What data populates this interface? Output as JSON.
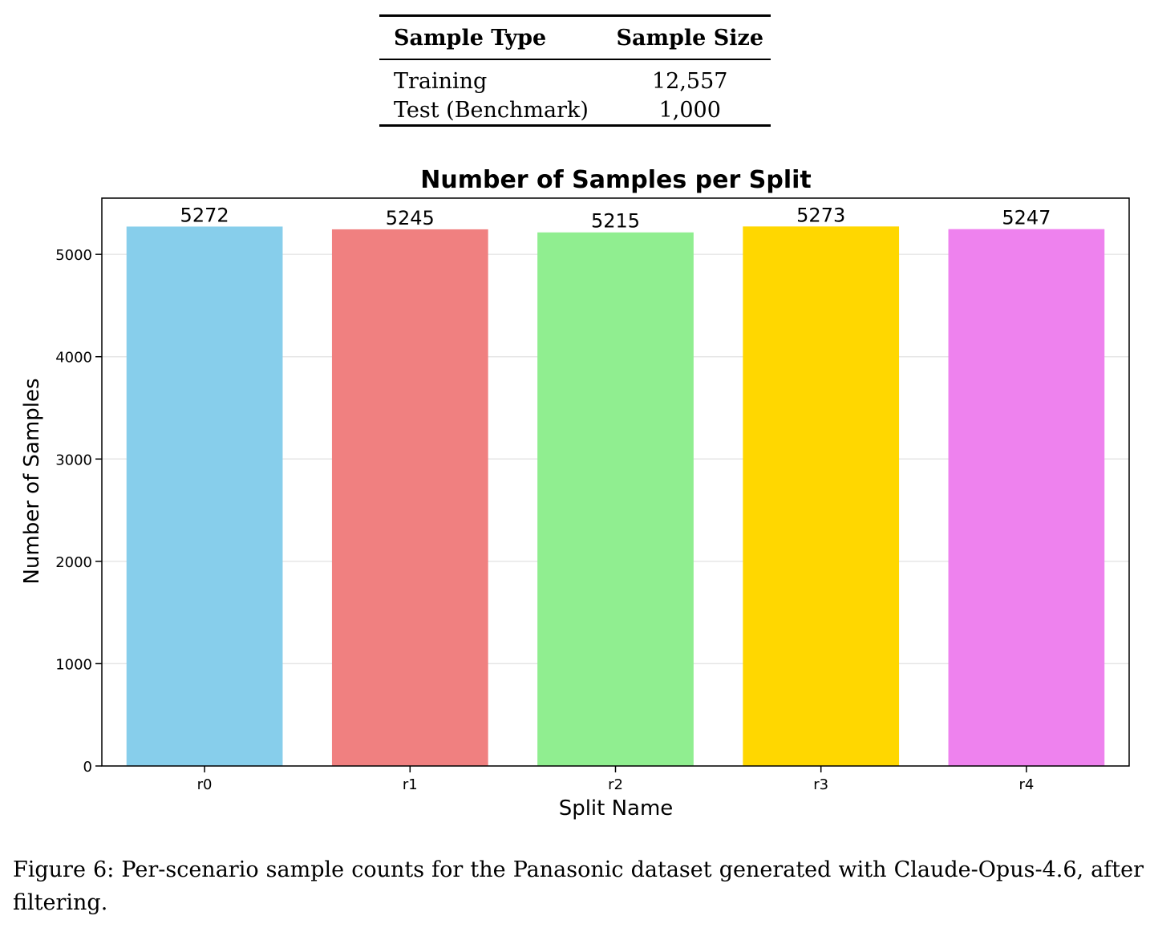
{
  "table": {
    "headers": [
      "Sample Type",
      "Sample Size"
    ],
    "rows": [
      [
        "Training",
        "12,557"
      ],
      [
        "Test (Benchmark)",
        "1,000"
      ]
    ]
  },
  "chart_data": {
    "type": "bar",
    "title": "Number of Samples per Split",
    "xlabel": "Split Name",
    "ylabel": "Number of Samples",
    "categories": [
      "r0",
      "r1",
      "r2",
      "r3",
      "r4"
    ],
    "values": [
      5272,
      5245,
      5215,
      5273,
      5247
    ],
    "data_labels": [
      "5272",
      "5245",
      "5215",
      "5273",
      "5247"
    ],
    "colors": [
      "#87ceeb",
      "#f08080",
      "#90ee90",
      "#ffd700",
      "#ee82ee"
    ],
    "ylim": [
      0,
      5550
    ],
    "yticks": [
      0,
      1000,
      2000,
      3000,
      4000,
      5000
    ],
    "ytick_labels": [
      "0",
      "1000",
      "2000",
      "3000",
      "4000",
      "5000"
    ],
    "grid": "horizontal"
  },
  "caption": "Figure 6: Per-scenario sample counts for the Panasonic dataset generated with Claude-Opus-4.6, after filtering."
}
